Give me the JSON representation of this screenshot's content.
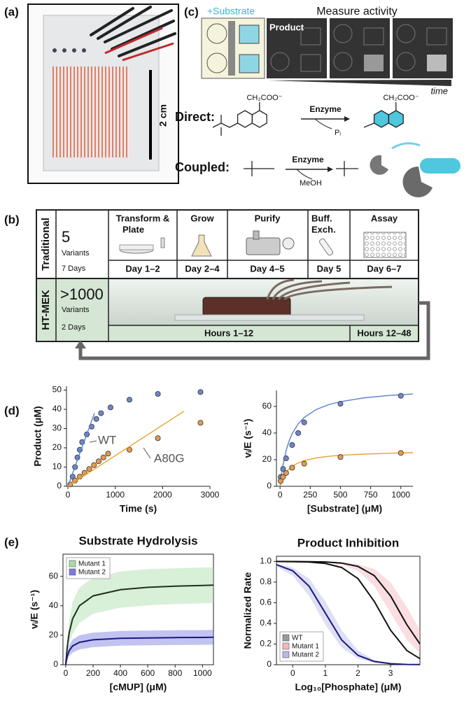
{
  "panel_labels": [
    "(a)",
    "(b)",
    "(c)",
    "(d)",
    "(e)"
  ],
  "panel_a": {
    "scale_bar": "2 cm"
  },
  "panel_c": {
    "substrate": "+Substrate",
    "measure": "Measure activity",
    "product": "Product",
    "time": "time",
    "direct": {
      "label": "Direct:",
      "group": "CH₂COO⁻",
      "enzyme": "Enzyme",
      "byproduct": "Pᵢ"
    },
    "coupled": {
      "label": "Coupled:",
      "enzyme": "Enzyme",
      "byproduct": "MeOH"
    }
  },
  "panel_b": {
    "rows": [
      {
        "name": "Traditional",
        "count": "5",
        "unit": "Variants",
        "duration": "7 Days",
        "steps": [
          {
            "name": "Transform &",
            "name2": "Plate",
            "time": "Day 1–2"
          },
          {
            "name": "Grow",
            "time": "Day 2–4"
          },
          {
            "name": "Purify",
            "time": "Day 4–5"
          },
          {
            "name": "Buff.",
            "name2": "Exch.",
            "time": "Day 5"
          },
          {
            "name": "Assay",
            "time": "Day 6–7"
          }
        ]
      },
      {
        "name": "HT-MEK",
        "count": ">1000",
        "unit": "Variants",
        "duration": "2 Days",
        "phases": [
          "Hours 1–12",
          "Hours 12–48"
        ]
      }
    ]
  },
  "chart_data": [
    {
      "type": "scatter",
      "x_label": "Time (s)",
      "y_label": "Product (μM)",
      "xlim": [
        -30,
        3000
      ],
      "ylim": [
        0,
        52
      ],
      "xticks": [
        0,
        1000,
        2000,
        3000
      ],
      "yticks": [
        0,
        10,
        20,
        30,
        40,
        50
      ],
      "annotations": [
        "WT",
        "A80G"
      ],
      "series": [
        {
          "color": "#6f86c9",
          "mode": "markers",
          "x": [
            100,
            150,
            200,
            250,
            300,
            400,
            500,
            600,
            700,
            900,
            1300,
            1900,
            2800
          ],
          "values": [
            5,
            10,
            15,
            19,
            23,
            27,
            31,
            35,
            38,
            41,
            45,
            48,
            49
          ]
        },
        {
          "color": "#e59a4e",
          "mode": "markers",
          "x": [
            50,
            150,
            250,
            350,
            450,
            550,
            650,
            750,
            850,
            1300,
            1900,
            2800
          ],
          "values": [
            1,
            3,
            5,
            7,
            9,
            11,
            13,
            15,
            17,
            19,
            25,
            33
          ]
        },
        {
          "color": "#5b7fd1",
          "mode": "line",
          "x": [
            0,
            560
          ],
          "values": [
            0,
            38
          ]
        },
        {
          "color": "#e8a32e",
          "mode": "line",
          "x": [
            0,
            2450
          ],
          "values": [
            0,
            39
          ]
        }
      ]
    },
    {
      "type": "scatter",
      "x_label": "[Substrate] (μM)",
      "y_label": "vᵢ/E (s⁻¹)",
      "xlim": [
        -30,
        1100
      ],
      "ylim": [
        0,
        72
      ],
      "xticks": [
        0,
        250,
        500,
        750,
        1000
      ],
      "yticks": [
        0,
        20,
        40,
        60
      ],
      "series": [
        {
          "color": "#5b7fd1",
          "mode": "line",
          "x": [
            0,
            10,
            25,
            50,
            75,
            100,
            150,
            200,
            300,
            400,
            500,
            700,
            900,
            1100
          ],
          "values": [
            0,
            7.5,
            16.3,
            26.8,
            34.1,
            39.5,
            46.9,
            51.7,
            57.7,
            61.2,
            63.6,
            66.5,
            68.2,
            69.3
          ]
        },
        {
          "color": "#e8a32e",
          "mode": "line",
          "x": [
            0,
            10,
            25,
            50,
            75,
            100,
            150,
            200,
            300,
            400,
            500,
            700,
            900,
            1100
          ],
          "values": [
            0,
            3.0,
            6.4,
            10.4,
            13.1,
            15.0,
            17.6,
            19.3,
            21.3,
            22.5,
            23.3,
            24.2,
            24.8,
            25.2
          ]
        },
        {
          "color": "#6f86c9",
          "mode": "markers",
          "x": [
            5,
            25,
            50,
            100,
            150,
            200,
            500,
            1000
          ],
          "values": [
            7,
            13,
            21,
            31,
            40,
            48,
            62,
            68
          ]
        },
        {
          "color": "#e59a4e",
          "mode": "markers",
          "x": [
            5,
            25,
            50,
            100,
            200,
            500,
            1000
          ],
          "values": [
            4,
            7,
            10,
            14,
            17,
            22,
            25
          ]
        }
      ]
    },
    {
      "type": "line",
      "title": "Substrate Hydrolysis",
      "x_label": "[cMUP] (μM)",
      "y_label": "vᵢ/E (s⁻¹)",
      "xlim": [
        -20,
        1080
      ],
      "ylim": [
        0,
        75
      ],
      "xticks": [
        0,
        200,
        400,
        600,
        800,
        1000
      ],
      "yticks": [
        0,
        20,
        40,
        60
      ],
      "legend": "upper left",
      "series": [
        {
          "name": "Mutant 1",
          "color": "#a8dca8",
          "line_color": "#1f2f1f",
          "x": [
            0,
            10,
            25,
            50,
            100,
            200,
            400,
            600,
            800,
            1000,
            1080
          ],
          "values": [
            0,
            11.2,
            21.5,
            31.1,
            40,
            46.7,
            50.9,
            52.5,
            53.3,
            53.8,
            54.0
          ],
          "upper": [
            0,
            17,
            30.2,
            42.5,
            52.3,
            59.1,
            63.2,
            64.9,
            65.4,
            66,
            66.1
          ],
          "lower": [
            0,
            6.8,
            13.8,
            20.95,
            28.4,
            34.5,
            38.7,
            40.3,
            41.2,
            41.7,
            41.9
          ]
        },
        {
          "name": "Mutant 2",
          "color": "#7b7be0",
          "line_color": "#1a1a80",
          "x": [
            0,
            10,
            25,
            50,
            100,
            200,
            400,
            600,
            800,
            1000,
            1080
          ],
          "values": [
            0,
            5.4,
            9.5,
            12.7,
            15.2,
            16.9,
            17.9,
            18.2,
            18.4,
            18.5,
            18.6
          ],
          "upper": [
            0,
            8,
            13.3,
            17.1,
            20,
            21.8,
            22.9,
            23.2,
            23.4,
            23.5,
            23.6
          ],
          "lower": [
            0,
            3.1,
            5.8,
            8.2,
            10.4,
            11.9,
            12.9,
            13.2,
            13.4,
            13.5,
            13.6
          ]
        }
      ]
    },
    {
      "type": "line",
      "title": "Product Inhibition",
      "x_label": "Log₁₀[Phosphate] (μM)",
      "y_label": "Normalized Rate",
      "xlim": [
        -0.5,
        3.9
      ],
      "ylim": [
        0,
        1.05
      ],
      "xticks": [
        0,
        1,
        2,
        3
      ],
      "yticks": [
        0,
        0.2,
        0.4,
        0.6,
        0.8,
        {
          "value": 1,
          "label": "1.0"
        }
      ],
      "legend": "lower left",
      "series": [
        {
          "name": "WT",
          "color": "#999999",
          "line_color": "#111111",
          "x": [
            -0.5,
            0,
            0.5,
            1,
            1.5,
            2,
            2.5,
            3,
            3.5,
            3.9
          ],
          "values": [
            0.9994,
            0.998,
            0.994,
            0.98,
            0.941,
            0.834,
            0.613,
            0.334,
            0.137,
            0.059
          ]
        },
        {
          "name": "Mutant 1",
          "color": "#f4b6bd",
          "line_color": "#111111",
          "x": [
            -0.5,
            0,
            0.5,
            1,
            1.5,
            2,
            2.5,
            3,
            3.5,
            3.9
          ],
          "values": [
            1.0,
            0.9995,
            0.998,
            0.995,
            0.984,
            0.952,
            0.863,
            0.666,
            0.387,
            0.201
          ],
          "upper": [
            1.0,
            1.0,
            1.0,
            0.998,
            0.992,
            0.975,
            0.926,
            0.799,
            0.557,
            0.334
          ],
          "lower": [
            1.0,
            0.999,
            0.997,
            0.99,
            0.969,
            0.909,
            0.76,
            0.5,
            0.24,
            0.112
          ]
        },
        {
          "name": "Mutant 2",
          "color": "#b8b8e8",
          "line_color": "#1a1a80",
          "x": [
            -0.5,
            0,
            0.5,
            1,
            1.5,
            2,
            2.5,
            3,
            3.5,
            3.9
          ],
          "values": [
            0.969,
            0.909,
            0.76,
            0.5,
            0.24,
            0.091,
            0.031,
            0.0099,
            0.003,
            0.0013
          ],
          "upper": [
            0.98,
            0.941,
            0.834,
            0.613,
            0.334,
            0.137,
            0.048,
            0.016,
            0.005,
            0.002
          ],
          "lower": [
            0.952,
            0.863,
            0.666,
            0.387,
            0.166,
            0.059,
            0.02,
            0.006,
            0.002,
            0.001
          ]
        }
      ]
    }
  ]
}
